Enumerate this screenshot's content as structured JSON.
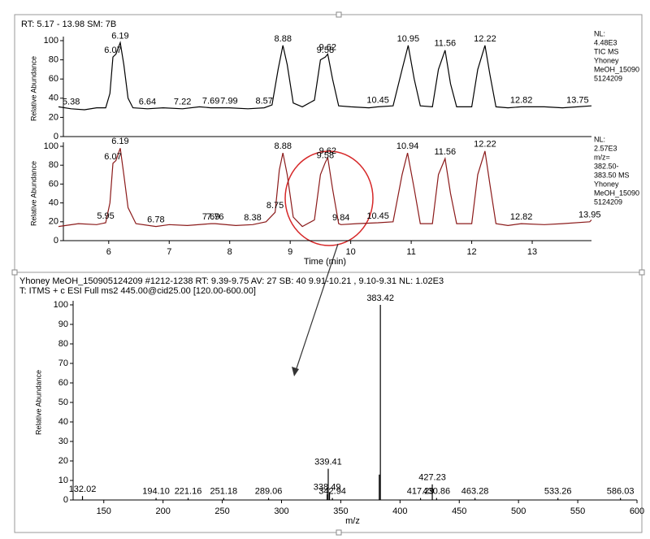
{
  "chart_data": [
    {
      "type": "line",
      "title": "RT: 5.17 - 13.98   SM: 7B",
      "ylabel": "Relative Abundance",
      "color": "#000000",
      "xlim": [
        5.17,
        13.98
      ],
      "ylim": [
        0,
        100
      ],
      "yticks": [
        0,
        20,
        40,
        60,
        80,
        100
      ],
      "x": [
        5.17,
        5.38,
        5.6,
        5.8,
        5.95,
        6.02,
        6.07,
        6.12,
        6.19,
        6.25,
        6.32,
        6.4,
        6.64,
        6.9,
        7.22,
        7.5,
        7.69,
        7.99,
        8.3,
        8.57,
        8.7,
        8.8,
        8.88,
        8.95,
        9.05,
        9.2,
        9.4,
        9.5,
        9.58,
        9.62,
        9.7,
        9.8,
        10.0,
        10.3,
        10.45,
        10.7,
        10.85,
        10.95,
        11.05,
        11.15,
        11.35,
        11.45,
        11.56,
        11.65,
        11.75,
        12.0,
        12.1,
        12.22,
        12.3,
        12.4,
        12.6,
        12.82,
        13.2,
        13.5,
        13.75,
        13.98
      ],
      "values": [
        31,
        29,
        28,
        30,
        30,
        45,
        83,
        86,
        98,
        75,
        40,
        30,
        29,
        30,
        29,
        31,
        30,
        30,
        29,
        30,
        33,
        70,
        95,
        75,
        35,
        31,
        38,
        80,
        83,
        86,
        60,
        32,
        31,
        30,
        31,
        32,
        70,
        95,
        60,
        32,
        31,
        70,
        90,
        55,
        31,
        31,
        70,
        95,
        65,
        31,
        30,
        31,
        31,
        30,
        31,
        32
      ],
      "annotations": [
        {
          "x": 5.38,
          "y": 29,
          "label": "5.38"
        },
        {
          "x": 6.07,
          "y": 83,
          "label": "6.07"
        },
        {
          "x": 6.19,
          "y": 98,
          "label": "6.19"
        },
        {
          "x": 6.64,
          "y": 29,
          "label": "6.64"
        },
        {
          "x": 7.22,
          "y": 29,
          "label": "7.22"
        },
        {
          "x": 7.69,
          "y": 30,
          "label": "7.69"
        },
        {
          "x": 7.99,
          "y": 30,
          "label": "7.99"
        },
        {
          "x": 8.57,
          "y": 30,
          "label": "8.57"
        },
        {
          "x": 8.88,
          "y": 95,
          "label": "8.88"
        },
        {
          "x": 9.58,
          "y": 83,
          "label": "9.58"
        },
        {
          "x": 9.62,
          "y": 86,
          "label": "9.62"
        },
        {
          "x": 10.45,
          "y": 31,
          "label": "10.45"
        },
        {
          "x": 10.95,
          "y": 95,
          "label": "10.95"
        },
        {
          "x": 11.56,
          "y": 90,
          "label": "11.56"
        },
        {
          "x": 12.22,
          "y": 95,
          "label": "12.22"
        },
        {
          "x": 12.82,
          "y": 31,
          "label": "12.82"
        },
        {
          "x": 13.75,
          "y": 31,
          "label": "13.75"
        }
      ],
      "info": [
        "NL:",
        "4.48E3",
        "TIC MS",
        "Yhoney",
        "MeOH_15090",
        "5124209"
      ],
      "info_color": "#333333"
    },
    {
      "type": "line",
      "xlabel": "Time (min)",
      "ylabel": "Relative Abundance",
      "color": "#8b1a1a",
      "xlim": [
        5.17,
        13.98
      ],
      "xticks": [
        6,
        7,
        8,
        9,
        10,
        11,
        12,
        13
      ],
      "ylim": [
        0,
        100
      ],
      "yticks": [
        0,
        20,
        40,
        60,
        80,
        100
      ],
      "x": [
        5.17,
        5.5,
        5.8,
        5.95,
        6.02,
        6.07,
        6.12,
        6.19,
        6.25,
        6.32,
        6.45,
        6.78,
        7.0,
        7.3,
        7.69,
        7.76,
        8.1,
        8.38,
        8.6,
        8.75,
        8.82,
        8.88,
        8.95,
        9.05,
        9.2,
        9.4,
        9.5,
        9.58,
        9.62,
        9.7,
        9.8,
        9.84,
        10.1,
        10.45,
        10.7,
        10.85,
        10.94,
        11.05,
        11.15,
        11.35,
        11.45,
        11.56,
        11.65,
        11.75,
        12.0,
        12.1,
        12.22,
        12.3,
        12.4,
        12.6,
        12.82,
        13.2,
        13.5,
        13.95,
        13.98
      ],
      "values": [
        15,
        18,
        17,
        19,
        40,
        82,
        85,
        98,
        70,
        35,
        18,
        15,
        17,
        16,
        18,
        18,
        16,
        17,
        20,
        30,
        75,
        93,
        70,
        25,
        15,
        22,
        70,
        83,
        88,
        55,
        18,
        17,
        18,
        19,
        20,
        70,
        93,
        55,
        18,
        18,
        70,
        87,
        50,
        18,
        18,
        70,
        95,
        60,
        18,
        16,
        18,
        17,
        18,
        20,
        22
      ],
      "annotations": [
        {
          "x": 5.95,
          "y": 19,
          "label": "5.95"
        },
        {
          "x": 6.07,
          "y": 82,
          "label": "6.07"
        },
        {
          "x": 6.19,
          "y": 98,
          "label": "6.19"
        },
        {
          "x": 6.78,
          "y": 15,
          "label": "6.78"
        },
        {
          "x": 7.69,
          "y": 18,
          "label": "7.69"
        },
        {
          "x": 7.76,
          "y": 18,
          "label": "7.76"
        },
        {
          "x": 8.38,
          "y": 17,
          "label": "8.38"
        },
        {
          "x": 8.75,
          "y": 30,
          "label": "8.75"
        },
        {
          "x": 8.88,
          "y": 93,
          "label": "8.88"
        },
        {
          "x": 9.58,
          "y": 83,
          "label": "9.58"
        },
        {
          "x": 9.62,
          "y": 88,
          "label": "9.62"
        },
        {
          "x": 9.84,
          "y": 17,
          "label": "9.84"
        },
        {
          "x": 10.45,
          "y": 19,
          "label": "10.45"
        },
        {
          "x": 10.94,
          "y": 93,
          "label": "10.94"
        },
        {
          "x": 11.56,
          "y": 87,
          "label": "11.56"
        },
        {
          "x": 12.22,
          "y": 95,
          "label": "12.22"
        },
        {
          "x": 12.82,
          "y": 18,
          "label": "12.82"
        },
        {
          "x": 13.95,
          "y": 20,
          "label": "13.95"
        }
      ],
      "info": [
        "NL:",
        "2.57E3",
        "m/z=",
        "382.50-",
        "383.50  MS",
        "Yhoney",
        "MeOH_15090",
        "5124209"
      ],
      "info_color": "#8b1a1a"
    },
    {
      "type": "stick",
      "title": "Yhoney MeOH_150905124209 #1212-1238  RT: 9.39-9.75  AV: 27  SB: 40  9.91-10.21 , 9.10-9.31  NL: 1.02E3",
      "subtitle": "T: ITMS + c ESI Full ms2 445.00@cid25.00 [120.00-600.00]",
      "xlabel": "m/z",
      "ylabel": "Relative Abundance",
      "color": "#000000",
      "xlim": [
        120,
        600
      ],
      "xticks": [
        150,
        200,
        250,
        300,
        350,
        400,
        450,
        500,
        550,
        600
      ],
      "ylim": [
        0,
        100
      ],
      "yticks": [
        0,
        10,
        20,
        30,
        40,
        50,
        60,
        70,
        80,
        90,
        100
      ],
      "x": [
        132.02,
        194.1,
        221.16,
        251.18,
        289.06,
        338.49,
        339.41,
        340.5,
        342.94,
        382.5,
        383.42,
        417.29,
        427.23,
        430.86,
        463.28,
        533.26,
        586.03
      ],
      "values": [
        2,
        1,
        1,
        1,
        1,
        3,
        16,
        4,
        1,
        13,
        100,
        1,
        8,
        1,
        1,
        1,
        1
      ],
      "labels": [
        "132.02",
        "194.10",
        "221.16",
        "251.18",
        "289.06",
        "338.49",
        "339.41",
        null,
        "342.94",
        null,
        "383.42",
        "417.29",
        "427.23",
        "430.86",
        "463.28",
        "533.26",
        "586.03"
      ]
    }
  ]
}
